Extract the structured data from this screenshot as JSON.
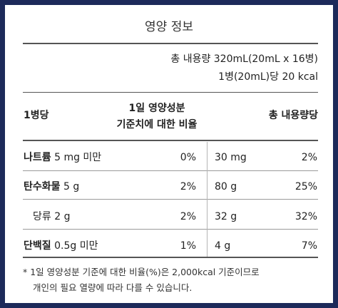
{
  "label": {
    "title": "영양 정보",
    "total_volume": "총 내용량 320mL(20mL x 16병)",
    "per_bottle_kcal": "1병(20mL)당 20 kcal",
    "header": {
      "per_bottle": "1병당",
      "daily_line1": "1일 영양성분",
      "daily_line2": "기준치에 대한 비율",
      "total_basis": "총 내용량당"
    },
    "rows": [
      {
        "name": "나트륨",
        "amount": "5 mg 미만",
        "pct": "0%",
        "total": "30 mg",
        "total_pct": "2%"
      },
      {
        "name": "탄수화물",
        "amount": "5 g",
        "pct": "2%",
        "total": "80 g",
        "total_pct": "25%"
      },
      {
        "name": "당류",
        "amount": "2 g",
        "pct": "2%",
        "total": "32 g",
        "total_pct": "32%"
      },
      {
        "name": "단백질",
        "amount": "0.5g 미만",
        "pct": "1%",
        "total": "4 g",
        "total_pct": "7%"
      }
    ],
    "footnote_line1": "* 1일 영양성분 기준에 대한 비율(%)은 2,000kcal 기준이므로",
    "footnote_line2": "개인의 필요 열량에 따라 다를 수 있습니다.",
    "colors": {
      "frame": "#1d2a5a",
      "background": "#ffffff"
    }
  }
}
